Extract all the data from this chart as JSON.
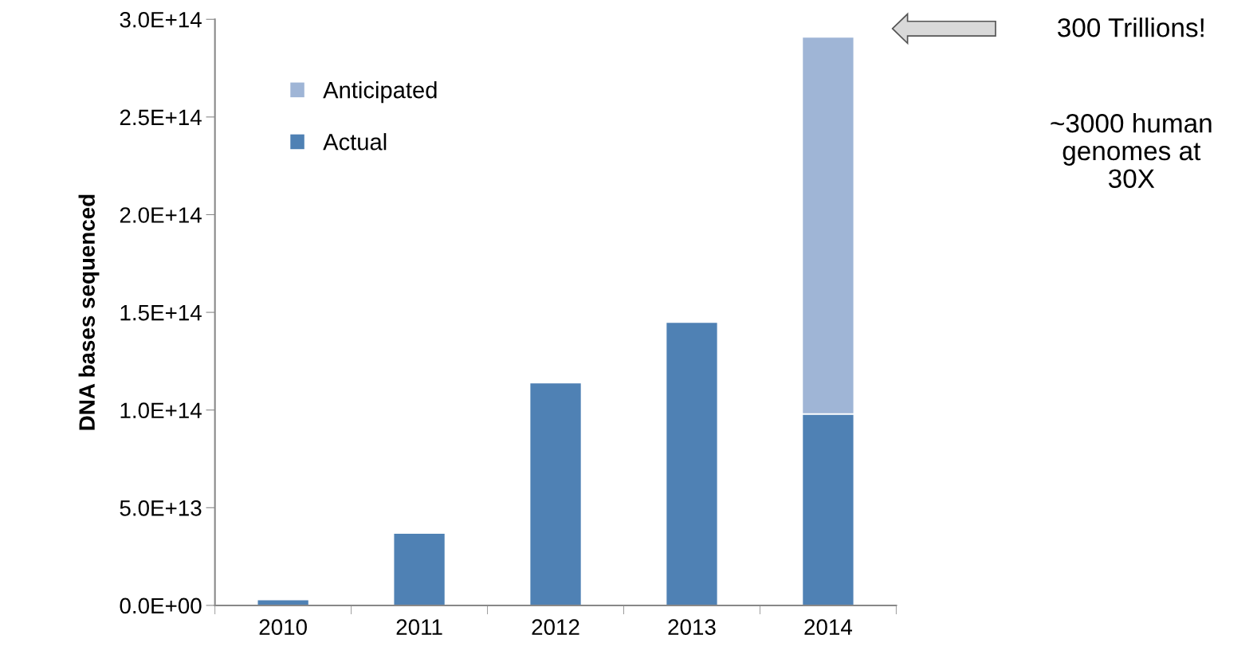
{
  "chart_data": {
    "type": "bar",
    "stacked": true,
    "ylabel": "DNA bases sequenced",
    "categories": [
      "2010",
      "2011",
      "2012",
      "2013",
      "2014"
    ],
    "series": [
      {
        "name": "Actual",
        "color": "#4f81b4",
        "values": [
          3000000000000.0,
          37000000000000.0,
          114000000000000.0,
          145000000000000.0,
          98000000000000.0
        ]
      },
      {
        "name": "Anticipated",
        "color": "#9fb5d6",
        "values": [
          null,
          null,
          null,
          null,
          193000000000000.0
        ]
      }
    ],
    "ylim": [
      0,
      300000000000000.0
    ],
    "yticks": [
      {
        "value": 0,
        "label": "0.0E+00"
      },
      {
        "value": 50000000000000.0,
        "label": "5.0E+13"
      },
      {
        "value": 100000000000000.0,
        "label": "1.0E+14"
      },
      {
        "value": 150000000000000.0,
        "label": "1.5E+14"
      },
      {
        "value": 200000000000000.0,
        "label": "2.0E+14"
      },
      {
        "value": 250000000000000.0,
        "label": "2.5E+14"
      },
      {
        "value": 300000000000000.0,
        "label": "3.0E+14"
      }
    ],
    "grid": false,
    "legend": "top left",
    "annotations": [
      "300 Trillions!",
      "~3000 human\ngenomes at\n30X"
    ]
  }
}
